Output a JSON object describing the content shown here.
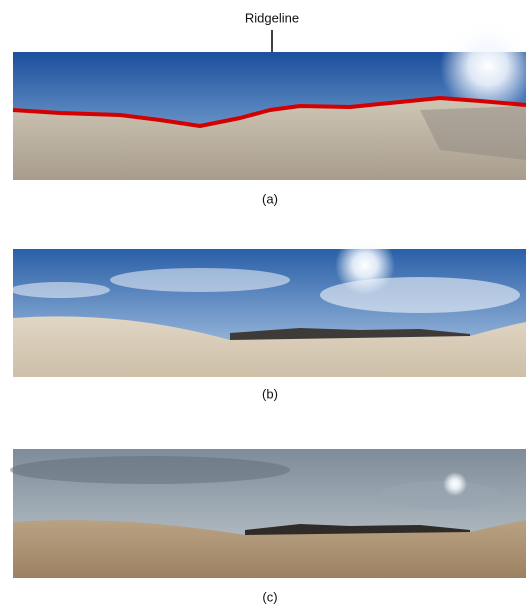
{
  "annotation": "Ridgeline",
  "panels": [
    {
      "label": "(a)"
    },
    {
      "label": "(b)"
    },
    {
      "label": "(c)"
    }
  ]
}
